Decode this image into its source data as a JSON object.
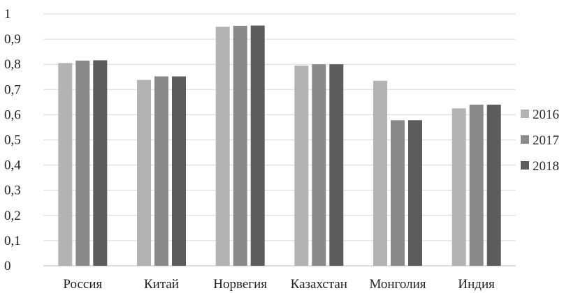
{
  "chart_data": {
    "type": "bar",
    "categories": [
      "Россия",
      "Китай",
      "Норвегия",
      "Казахстан",
      "Монголия",
      "Индия"
    ],
    "series": [
      {
        "name": "2016",
        "color": "#b3b3b3",
        "values": [
          0.805,
          0.738,
          0.949,
          0.795,
          0.735,
          0.625
        ]
      },
      {
        "name": "2017",
        "color": "#8a8a8a",
        "values": [
          0.815,
          0.752,
          0.953,
          0.8,
          0.578,
          0.64
        ]
      },
      {
        "name": "2018",
        "color": "#5c5c5c",
        "values": [
          0.816,
          0.752,
          0.954,
          0.8,
          0.578,
          0.64
        ]
      }
    ],
    "y_ticks": [
      "0",
      "0,1",
      "0,2",
      "0,3",
      "0,4",
      "0,5",
      "0,6",
      "0,7",
      "0,8",
      "0,9",
      "1"
    ],
    "ylim": [
      0,
      1
    ],
    "grid": true,
    "legend_position": "right",
    "title": "",
    "xlabel": "",
    "ylabel": ""
  }
}
